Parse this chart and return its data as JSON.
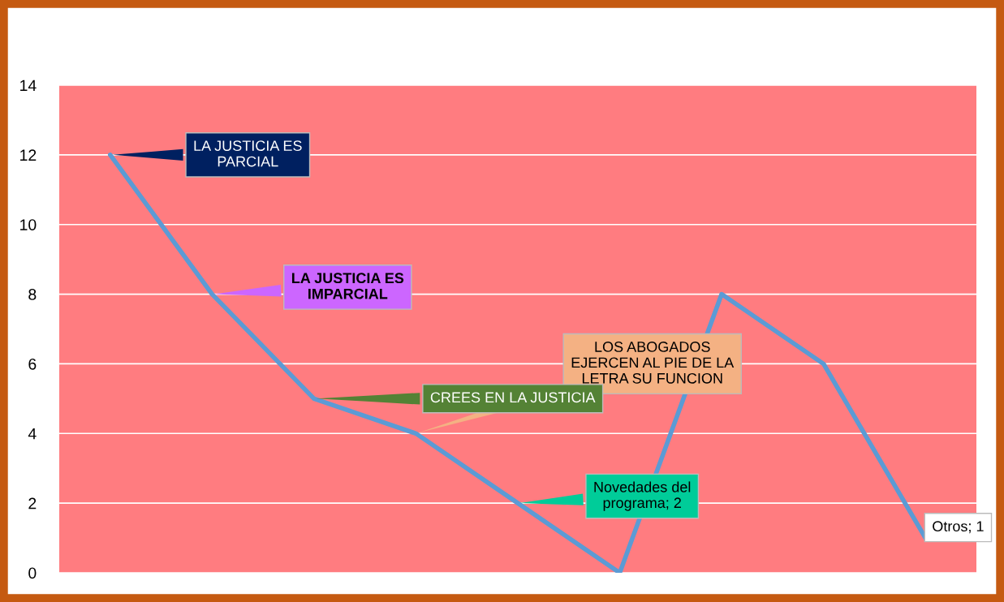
{
  "chart_data": {
    "type": "line",
    "categories": [
      null,
      null,
      null,
      null,
      null,
      null,
      null,
      null,
      null
    ],
    "series": [
      {
        "color": "#5b9bd5",
        "values": [
          12,
          8,
          5,
          4,
          2,
          0,
          8,
          6,
          1
        ],
        "value_labels": [
          "LA JUSTICIA ES\nPARCIAL",
          "LA JUSTICIA ES\nIMPARCIAL",
          "CREES EN LA JUSTICIA",
          "LOS ABOGADOS\nEJERCEN AL PIE DE LA\nLETRA SU FUNCION",
          "Novedades del\nprograma; 2",
          null,
          null,
          null,
          "Otros; 1"
        ]
      }
    ],
    "ylim": [
      0,
      14
    ],
    "yticks": [
      0,
      2,
      4,
      6,
      8,
      10,
      12,
      14
    ],
    "grid": "y",
    "marker": "none",
    "line_style": "solid"
  }
}
